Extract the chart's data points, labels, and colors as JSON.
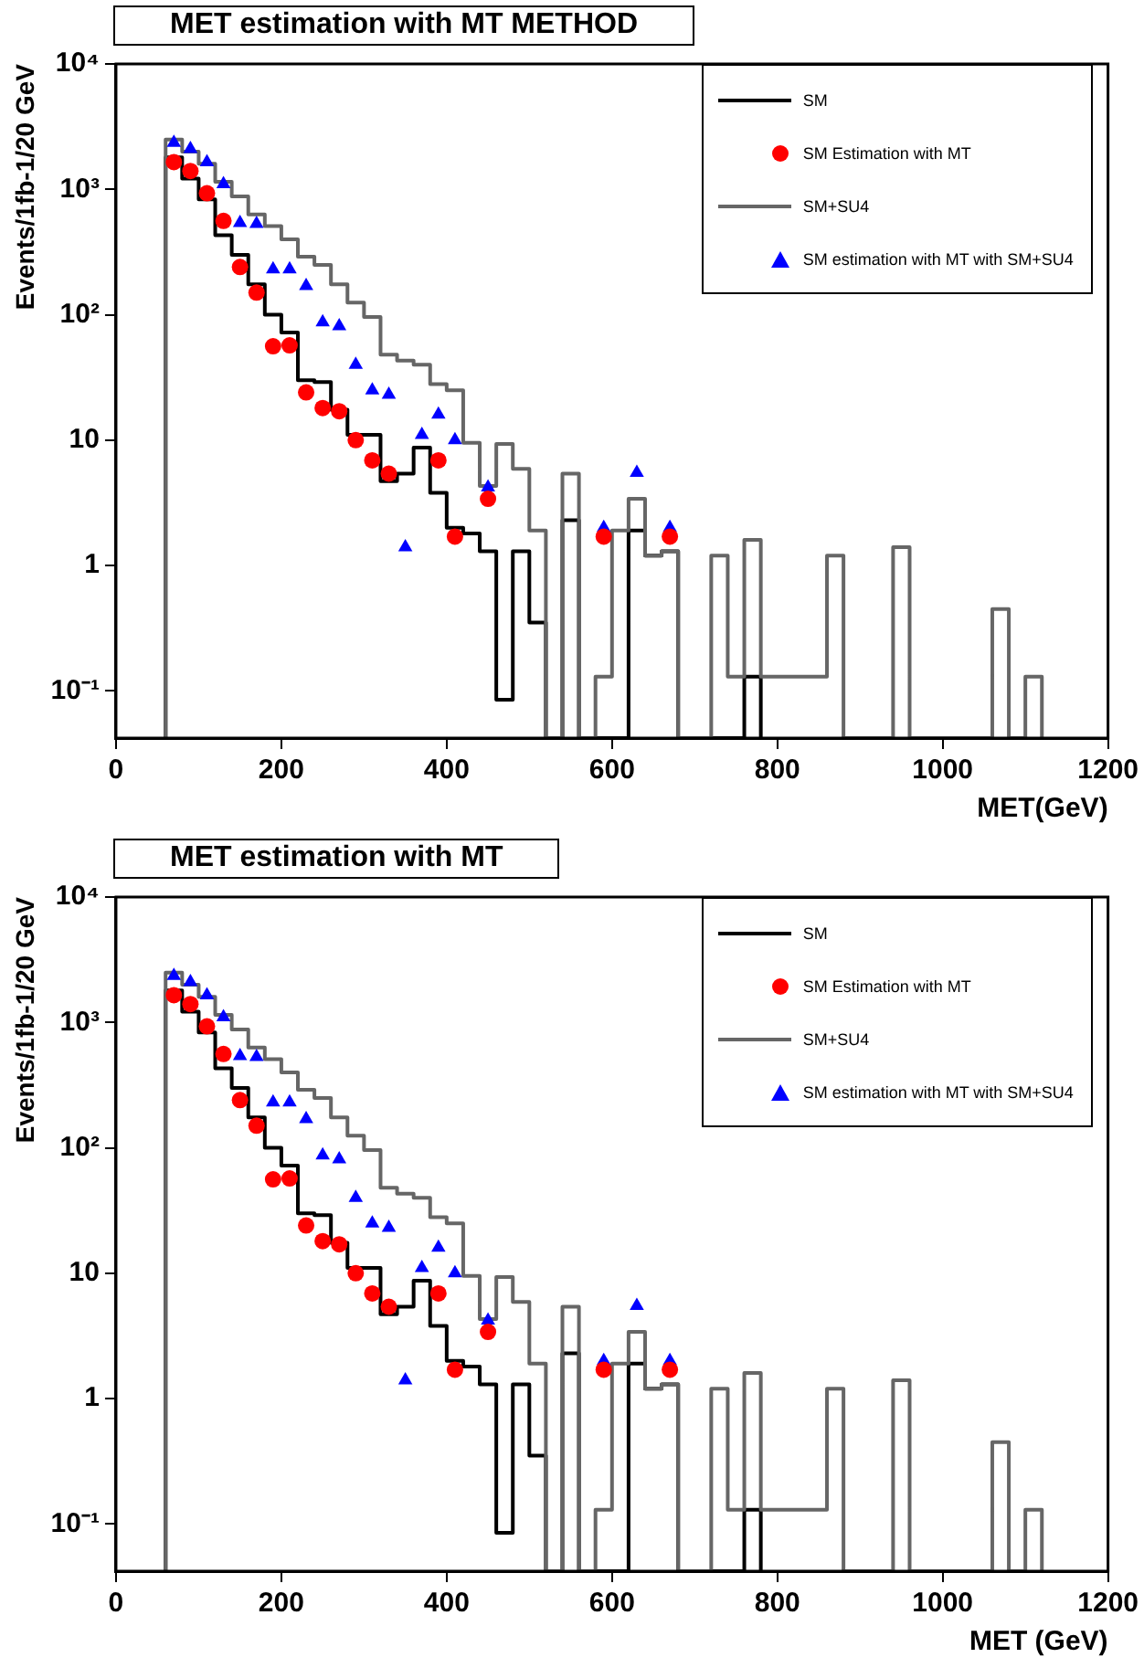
{
  "chart_data": [
    {
      "type": "histogram",
      "title": "MET estimation with MT METHOD",
      "xlabel": "MET(GeV)",
      "ylabel": "Events/1fb-1/20 GeV",
      "series": [
        {
          "name": "SM",
          "type": "histogram",
          "color": "#000000",
          "bins": [
            60,
            80,
            100,
            120,
            140,
            160,
            180,
            200,
            220,
            240,
            260,
            280,
            300,
            320,
            340,
            360,
            380,
            400,
            420,
            440,
            460,
            480,
            500,
            520,
            540,
            560,
            580,
            600,
            620,
            640,
            660,
            680,
            700,
            720,
            740,
            760,
            780
          ],
          "values": [
            1800,
            1220,
            830,
            430,
            300,
            175,
            100,
            72,
            30,
            29,
            17.5,
            11,
            11,
            4.7,
            5.4,
            8.7,
            3.8,
            2.0,
            1.8,
            1.3,
            0.085,
            1.3,
            0.35,
            null,
            2.3,
            null,
            null,
            null,
            1.9,
            1.2,
            1.3,
            null,
            null,
            null,
            null,
            0.13
          ]
        },
        {
          "name": "SM Estimation with MT",
          "type": "scatter",
          "marker": "circle",
          "color": "#ff0000",
          "x": [
            70,
            90,
            110,
            130,
            150,
            170,
            190,
            210,
            230,
            250,
            270,
            290,
            310,
            330,
            390,
            410,
            450,
            590,
            670
          ],
          "values": [
            1650,
            1400,
            930,
            560,
            240,
            150,
            56,
            57,
            24,
            18,
            17,
            10,
            6.9,
            5.4,
            6.9,
            1.7,
            3.4,
            1.7,
            1.7
          ]
        },
        {
          "name": "SM+SU4",
          "type": "histogram",
          "color": "#666666",
          "bins": [
            60,
            80,
            100,
            120,
            140,
            160,
            180,
            200,
            220,
            240,
            260,
            280,
            300,
            320,
            340,
            360,
            380,
            400,
            420,
            440,
            460,
            480,
            500,
            520,
            540,
            560,
            580,
            600,
            620,
            640,
            660,
            680,
            700,
            720,
            740,
            760,
            780,
            800,
            820,
            840,
            860,
            880,
            900,
            920,
            940,
            960,
            980,
            1000,
            1020,
            1040,
            1060,
            1080,
            1100,
            1120
          ],
          "values": [
            2500,
            2000,
            1600,
            1150,
            880,
            630,
            510,
            400,
            290,
            250,
            175,
            125,
            96,
            48,
            43,
            40,
            28,
            25,
            9.5,
            4.3,
            9.3,
            5.9,
            1.9,
            null,
            5.4,
            null,
            0.13,
            1.9,
            3.4,
            1.2,
            1.3,
            null,
            null,
            1.2,
            0.13,
            1.6,
            0.13,
            0.13,
            0.13,
            0.13,
            1.2,
            null,
            null,
            null,
            1.4,
            null,
            null,
            null,
            null,
            null,
            0.45,
            null,
            0.13
          ]
        },
        {
          "name": "SM estimation with MT with SM+SU4",
          "type": "scatter",
          "marker": "triangle",
          "color": "#0000ff",
          "x": [
            70,
            90,
            110,
            130,
            150,
            170,
            190,
            210,
            230,
            250,
            270,
            290,
            310,
            330,
            350,
            370,
            390,
            410,
            450,
            590,
            630,
            670
          ],
          "values": [
            2350,
            2100,
            1650,
            1100,
            540,
            530,
            230,
            230,
            170,
            87,
            81,
            40,
            25,
            23,
            1.4,
            11,
            16,
            10,
            4.2,
            2.0,
            5.5,
            2.0
          ]
        }
      ],
      "xlim": [
        0,
        1200
      ],
      "xticks": [
        0,
        200,
        400,
        600,
        800,
        1000,
        1200
      ],
      "ylim": [
        0.042,
        10000
      ],
      "yticks": [
        {
          "value": 0.1,
          "label": "10⁻¹"
        },
        {
          "value": 1,
          "label": "1"
        },
        {
          "value": 10,
          "label": "10"
        },
        {
          "value": 100,
          "label": "10²"
        },
        {
          "value": 1000,
          "label": "10³"
        },
        {
          "value": 10000,
          "label": "10⁴"
        }
      ],
      "log": "y",
      "grid": false,
      "legend": "top right"
    },
    {
      "type": "histogram",
      "title": "MET estimation with MT",
      "xlabel": "MET (GeV)",
      "ylabel": "Events/1fb-1/20 GeV",
      "series": [
        {
          "name": "SM",
          "type": "histogram",
          "color": "#000000",
          "bins": [
            60,
            80,
            100,
            120,
            140,
            160,
            180,
            200,
            220,
            240,
            260,
            280,
            300,
            320,
            340,
            360,
            380,
            400,
            420,
            440,
            460,
            480,
            500,
            520,
            540,
            560,
            580,
            600,
            620,
            640,
            660,
            680,
            700,
            720,
            740,
            760,
            780
          ],
          "values": [
            1800,
            1220,
            830,
            430,
            300,
            175,
            100,
            72,
            30,
            29,
            17.5,
            11,
            11,
            4.7,
            5.4,
            8.7,
            3.8,
            2.0,
            1.8,
            1.3,
            0.085,
            1.3,
            0.35,
            null,
            2.3,
            null,
            null,
            null,
            1.9,
            1.2,
            1.3,
            null,
            null,
            null,
            null,
            0.13
          ]
        },
        {
          "name": "SM Estimation with MT",
          "type": "scatter",
          "marker": "circle",
          "color": "#ff0000",
          "x": [
            70,
            90,
            110,
            130,
            150,
            170,
            190,
            210,
            230,
            250,
            270,
            290,
            310,
            330,
            390,
            410,
            450,
            590,
            670
          ],
          "values": [
            1650,
            1400,
            930,
            560,
            240,
            150,
            56,
            57,
            24,
            18,
            17,
            10,
            6.9,
            5.4,
            6.9,
            1.7,
            3.4,
            1.7,
            1.7
          ]
        },
        {
          "name": "SM+SU4",
          "type": "histogram",
          "color": "#666666",
          "bins": [
            60,
            80,
            100,
            120,
            140,
            160,
            180,
            200,
            220,
            240,
            260,
            280,
            300,
            320,
            340,
            360,
            380,
            400,
            420,
            440,
            460,
            480,
            500,
            520,
            540,
            560,
            580,
            600,
            620,
            640,
            660,
            680,
            700,
            720,
            740,
            760,
            780,
            800,
            820,
            840,
            860,
            880,
            900,
            920,
            940,
            960,
            980,
            1000,
            1020,
            1040,
            1060,
            1080,
            1100,
            1120
          ],
          "values": [
            2500,
            2000,
            1600,
            1150,
            880,
            630,
            510,
            400,
            290,
            250,
            175,
            125,
            96,
            48,
            43,
            40,
            28,
            25,
            9.5,
            4.3,
            9.3,
            5.9,
            1.9,
            null,
            5.4,
            null,
            0.13,
            1.9,
            3.4,
            1.2,
            1.3,
            null,
            null,
            1.2,
            0.13,
            1.6,
            0.13,
            0.13,
            0.13,
            0.13,
            1.2,
            null,
            null,
            null,
            1.4,
            null,
            null,
            null,
            null,
            null,
            0.45,
            null,
            0.13
          ]
        },
        {
          "name": "SM estimation with MT with SM+SU4",
          "type": "scatter",
          "marker": "triangle",
          "color": "#0000ff",
          "x": [
            70,
            90,
            110,
            130,
            150,
            170,
            190,
            210,
            230,
            250,
            270,
            290,
            310,
            330,
            350,
            370,
            390,
            410,
            450,
            590,
            630,
            670
          ],
          "values": [
            2350,
            2100,
            1650,
            1100,
            540,
            530,
            230,
            230,
            170,
            87,
            81,
            40,
            25,
            23,
            1.4,
            11,
            16,
            10,
            4.2,
            2.0,
            5.5,
            2.0
          ]
        }
      ],
      "xlim": [
        0,
        1200
      ],
      "xticks": [
        0,
        200,
        400,
        600,
        800,
        1000,
        1200
      ],
      "ylim": [
        0.042,
        10000
      ],
      "yticks": [
        {
          "value": 0.1,
          "label": "10⁻¹"
        },
        {
          "value": 1,
          "label": "1"
        },
        {
          "value": 10,
          "label": "10"
        },
        {
          "value": 100,
          "label": "10²"
        },
        {
          "value": 1000,
          "label": "10³"
        },
        {
          "value": 10000,
          "label": "10⁴"
        }
      ],
      "log": "y",
      "grid": false,
      "legend": "top right"
    }
  ]
}
